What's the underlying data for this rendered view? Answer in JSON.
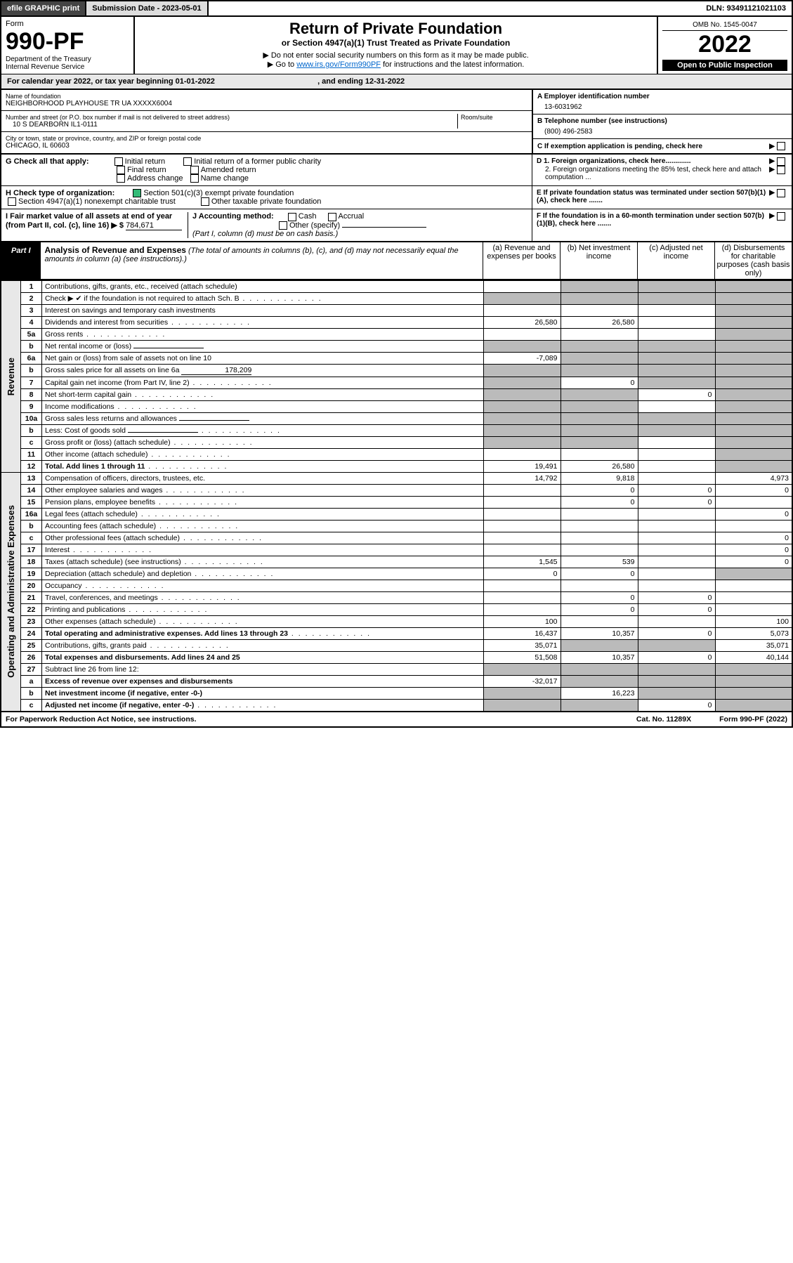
{
  "topbar": {
    "efile": "efile GRAPHIC print",
    "subdate_label": "Submission Date - ",
    "subdate": "2023-05-01",
    "dln_label": "DLN: ",
    "dln": "93491121021103"
  },
  "header": {
    "form_label": "Form",
    "form_num": "990-PF",
    "dept": "Department of the Treasury",
    "irs": "Internal Revenue Service",
    "title": "Return of Private Foundation",
    "subtitle": "or Section 4947(a)(1) Trust Treated as Private Foundation",
    "instr1": "▶ Do not enter social security numbers on this form as it may be made public.",
    "instr2_pre": "▶ Go to ",
    "instr2_link": "www.irs.gov/Form990PF",
    "instr2_post": " for instructions and the latest information.",
    "omb": "OMB No. 1545-0047",
    "year": "2022",
    "open": "Open to Public Inspection"
  },
  "calendar": {
    "text_pre": "For calendar year 2022, or tax year beginning ",
    "begin": "01-01-2022",
    "text_mid": " , and ending ",
    "end": "12-31-2022"
  },
  "entity": {
    "name_label": "Name of foundation",
    "name": "NEIGHBORHOOD PLAYHOUSE TR UA XXXXX6004",
    "addr_label": "Number and street (or P.O. box number if mail is not delivered to street address)",
    "addr": "10 S DEARBORN IL1-0111",
    "room_label": "Room/suite",
    "city_label": "City or town, state or province, country, and ZIP or foreign postal code",
    "city": "CHICAGO, IL  60603",
    "ein_label": "A Employer identification number",
    "ein": "13-6031962",
    "phone_label": "B Telephone number (see instructions)",
    "phone": "(800) 496-2583",
    "c_label": "C If exemption application is pending, check here",
    "d1_label": "D 1. Foreign organizations, check here.............",
    "d2_label": "2. Foreign organizations meeting the 85% test, check here and attach computation ...",
    "e_label": "E If private foundation status was terminated under section 507(b)(1)(A), check here .......",
    "f_label": "F If the foundation is in a 60-month termination under section 507(b)(1)(B), check here ......."
  },
  "checks": {
    "g_label": "G Check all that apply:",
    "g_opts": [
      "Initial return",
      "Initial return of a former public charity",
      "Final return",
      "Amended return",
      "Address change",
      "Name change"
    ],
    "h_label": "H Check type of organization:",
    "h_opts": [
      "Section 501(c)(3) exempt private foundation",
      "Section 4947(a)(1) nonexempt charitable trust",
      "Other taxable private foundation"
    ],
    "i_label": "I Fair market value of all assets at end of year (from Part II, col. (c), line 16) ▶ $",
    "i_value": "784,671",
    "j_label": "J Accounting method:",
    "j_opts": [
      "Cash",
      "Accrual",
      "Other (specify)"
    ],
    "j_note": "(Part I, column (d) must be on cash basis.)"
  },
  "part1": {
    "tab": "Part I",
    "title": "Analysis of Revenue and Expenses",
    "title_note": "(The total of amounts in columns (b), (c), and (d) may not necessarily equal the amounts in column (a) (see instructions).)",
    "cols": {
      "a": "(a) Revenue and expenses per books",
      "b": "(b) Net investment income",
      "c": "(c) Adjusted net income",
      "d": "(d) Disbursements for charitable purposes (cash basis only)"
    }
  },
  "sidelabels": {
    "revenue": "Revenue",
    "expenses": "Operating and Administrative Expenses"
  },
  "rows": [
    {
      "n": "1",
      "desc": "Contributions, gifts, grants, etc., received (attach schedule)",
      "a": "",
      "b": "grey",
      "c": "grey",
      "d": "grey"
    },
    {
      "n": "2",
      "desc": "Check ▶ ✔ if the foundation is not required to attach Sch. B",
      "a": "grey",
      "b": "grey",
      "c": "grey",
      "d": "grey",
      "dots": true
    },
    {
      "n": "3",
      "desc": "Interest on savings and temporary cash investments",
      "a": "",
      "b": "",
      "c": "",
      "d": "grey"
    },
    {
      "n": "4",
      "desc": "Dividends and interest from securities",
      "a": "26,580",
      "b": "26,580",
      "c": "",
      "d": "grey",
      "dots": true
    },
    {
      "n": "5a",
      "desc": "Gross rents",
      "a": "",
      "b": "",
      "c": "",
      "d": "grey",
      "dots": true
    },
    {
      "n": "b",
      "desc": "Net rental income or (loss)",
      "a": "grey",
      "b": "grey",
      "c": "grey",
      "d": "grey",
      "inline": true
    },
    {
      "n": "6a",
      "desc": "Net gain or (loss) from sale of assets not on line 10",
      "a": "-7,089",
      "b": "grey",
      "c": "grey",
      "d": "grey"
    },
    {
      "n": "b",
      "desc": "Gross sales price for all assets on line 6a",
      "a": "grey",
      "b": "grey",
      "c": "grey",
      "d": "grey",
      "inline": true,
      "inline_val": "178,209"
    },
    {
      "n": "7",
      "desc": "Capital gain net income (from Part IV, line 2)",
      "a": "grey",
      "b": "0",
      "c": "grey",
      "d": "grey",
      "dots": true
    },
    {
      "n": "8",
      "desc": "Net short-term capital gain",
      "a": "grey",
      "b": "grey",
      "c": "0",
      "d": "grey",
      "dots": true
    },
    {
      "n": "9",
      "desc": "Income modifications",
      "a": "grey",
      "b": "grey",
      "c": "",
      "d": "grey",
      "dots": true
    },
    {
      "n": "10a",
      "desc": "Gross sales less returns and allowances",
      "a": "grey",
      "b": "grey",
      "c": "grey",
      "d": "grey",
      "inline": true
    },
    {
      "n": "b",
      "desc": "Less: Cost of goods sold",
      "a": "grey",
      "b": "grey",
      "c": "grey",
      "d": "grey",
      "inline": true,
      "dots": true
    },
    {
      "n": "c",
      "desc": "Gross profit or (loss) (attach schedule)",
      "a": "grey",
      "b": "grey",
      "c": "",
      "d": "grey",
      "dots": true
    },
    {
      "n": "11",
      "desc": "Other income (attach schedule)",
      "a": "",
      "b": "",
      "c": "",
      "d": "grey",
      "dots": true
    },
    {
      "n": "12",
      "desc": "Total. Add lines 1 through 11",
      "a": "19,491",
      "b": "26,580",
      "c": "",
      "d": "grey",
      "bold": true,
      "dots": true
    },
    {
      "n": "13",
      "desc": "Compensation of officers, directors, trustees, etc.",
      "a": "14,792",
      "b": "9,818",
      "c": "",
      "d": "4,973"
    },
    {
      "n": "14",
      "desc": "Other employee salaries and wages",
      "a": "",
      "b": "0",
      "c": "0",
      "d": "0",
      "dots": true
    },
    {
      "n": "15",
      "desc": "Pension plans, employee benefits",
      "a": "",
      "b": "0",
      "c": "0",
      "d": "",
      "dots": true
    },
    {
      "n": "16a",
      "desc": "Legal fees (attach schedule)",
      "a": "",
      "b": "",
      "c": "",
      "d": "0",
      "dots": true
    },
    {
      "n": "b",
      "desc": "Accounting fees (attach schedule)",
      "a": "",
      "b": "",
      "c": "",
      "d": "",
      "dots": true
    },
    {
      "n": "c",
      "desc": "Other professional fees (attach schedule)",
      "a": "",
      "b": "",
      "c": "",
      "d": "0",
      "dots": true
    },
    {
      "n": "17",
      "desc": "Interest",
      "a": "",
      "b": "",
      "c": "",
      "d": "0",
      "dots": true
    },
    {
      "n": "18",
      "desc": "Taxes (attach schedule) (see instructions)",
      "a": "1,545",
      "b": "539",
      "c": "",
      "d": "0",
      "dots": true
    },
    {
      "n": "19",
      "desc": "Depreciation (attach schedule) and depletion",
      "a": "0",
      "b": "0",
      "c": "",
      "d": "grey",
      "dots": true
    },
    {
      "n": "20",
      "desc": "Occupancy",
      "a": "",
      "b": "",
      "c": "",
      "d": "",
      "dots": true
    },
    {
      "n": "21",
      "desc": "Travel, conferences, and meetings",
      "a": "",
      "b": "0",
      "c": "0",
      "d": "",
      "dots": true
    },
    {
      "n": "22",
      "desc": "Printing and publications",
      "a": "",
      "b": "0",
      "c": "0",
      "d": "",
      "dots": true
    },
    {
      "n": "23",
      "desc": "Other expenses (attach schedule)",
      "a": "100",
      "b": "",
      "c": "",
      "d": "100",
      "dots": true
    },
    {
      "n": "24",
      "desc": "Total operating and administrative expenses. Add lines 13 through 23",
      "a": "16,437",
      "b": "10,357",
      "c": "0",
      "d": "5,073",
      "bold": true,
      "dots": true
    },
    {
      "n": "25",
      "desc": "Contributions, gifts, grants paid",
      "a": "35,071",
      "b": "grey",
      "c": "grey",
      "d": "35,071",
      "dots": true
    },
    {
      "n": "26",
      "desc": "Total expenses and disbursements. Add lines 24 and 25",
      "a": "51,508",
      "b": "10,357",
      "c": "0",
      "d": "40,144",
      "bold": true
    },
    {
      "n": "27",
      "desc": "Subtract line 26 from line 12:",
      "a": "grey",
      "b": "grey",
      "c": "grey",
      "d": "grey"
    },
    {
      "n": "a",
      "desc": "Excess of revenue over expenses and disbursements",
      "a": "-32,017",
      "b": "grey",
      "c": "grey",
      "d": "grey",
      "bold": true
    },
    {
      "n": "b",
      "desc": "Net investment income (if negative, enter -0-)",
      "a": "grey",
      "b": "16,223",
      "c": "grey",
      "d": "grey",
      "bold": true
    },
    {
      "n": "c",
      "desc": "Adjusted net income (if negative, enter -0-)",
      "a": "grey",
      "b": "grey",
      "c": "0",
      "d": "grey",
      "bold": true,
      "dots": true
    }
  ],
  "footer": {
    "left": "For Paperwork Reduction Act Notice, see instructions.",
    "mid": "Cat. No. 11289X",
    "right": "Form 990-PF (2022)"
  },
  "colors": {
    "grey_cell": "#bbbbbb",
    "side_bg": "#e8e8e8",
    "link": "#0066cc",
    "check_green": "#33bb77"
  }
}
